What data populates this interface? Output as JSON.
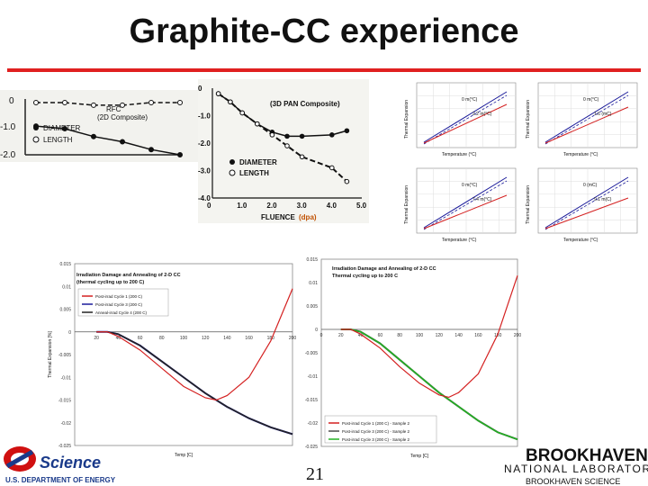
{
  "slide": {
    "title": "Graphite-CC experience",
    "page_number": "21",
    "colors": {
      "rule": "#e02020",
      "red": "#d42020",
      "blue": "#1a1a9a",
      "green": "#22b022"
    }
  },
  "chart_data": [
    {
      "type": "line",
      "title": "RFC\n(2D Composite)",
      "series": [
        {
          "name": "DIAMETER",
          "x": [
            0,
            0.8,
            1.6,
            2.4,
            3.2,
            4.0
          ],
          "y": [
            -0.9,
            -1.0,
            -1.3,
            -1.5,
            -1.8,
            -2.0
          ]
        },
        {
          "name": "LENGTH",
          "x": [
            0,
            0.8,
            1.6,
            2.4,
            3.2,
            4.0
          ],
          "y": [
            0.0,
            0.0,
            -0.1,
            -0.1,
            0.0,
            0.0
          ]
        }
      ],
      "yticks": [
        "0",
        "-1.0",
        "-2.0"
      ],
      "legend": [
        "DIAMETER",
        "LENGTH"
      ]
    },
    {
      "type": "line",
      "title": "(3D PAN Composite)",
      "xlabel": "FLUENCE",
      "xlabel_unit": "(dpa)",
      "xticks": [
        "0",
        "1.0",
        "2.0",
        "3.0",
        "4.0",
        "5.0"
      ],
      "yticks": [
        "0",
        "-1.0",
        "-2.0",
        "-3.0",
        "-4.0"
      ],
      "xlim": [
        0,
        5
      ],
      "ylim": [
        -4,
        0
      ],
      "series": [
        {
          "name": "DIAMETER",
          "x": [
            0.2,
            0.6,
            1.0,
            1.5,
            2.0,
            2.5,
            3.0,
            4.0,
            4.5
          ],
          "y": [
            -0.2,
            -0.5,
            -0.9,
            -1.3,
            -1.6,
            -1.75,
            -1.75,
            -1.7,
            -1.55
          ]
        },
        {
          "name": "LENGTH",
          "x": [
            0.2,
            0.6,
            1.0,
            1.5,
            2.0,
            2.5,
            3.0,
            4.0,
            4.5
          ],
          "y": [
            -0.2,
            -0.5,
            -0.9,
            -1.3,
            -1.7,
            -2.1,
            -2.5,
            -2.9,
            -3.4
          ]
        }
      ],
      "legend": [
        "DIAMETER",
        "LENGTH"
      ]
    },
    {
      "type": "line",
      "title": "Irradiation Damage and Annealing of 2-D CC\n(thermal cycling up to 200 C)",
      "xlabel": "Temp [C]",
      "ylabel": "Thermal Expansion [%]",
      "xticks": [
        "20",
        "40",
        "60",
        "80",
        "100",
        "120",
        "140",
        "160",
        "180",
        "200"
      ],
      "yticks": [
        "0.015",
        "0.01",
        "0.005",
        "0",
        "-0.005",
        "-0.01",
        "-0.015",
        "-0.02",
        "-0.025"
      ],
      "xlim": [
        0,
        200
      ],
      "ylim": [
        -0.025,
        0.015
      ],
      "series": [
        {
          "name": "Post-irrad Cycle 1 (200 C)",
          "x": [
            20,
            30,
            40,
            60,
            80,
            100,
            120,
            130,
            140,
            160,
            180,
            200
          ],
          "y": [
            0,
            0,
            -0.001,
            -0.004,
            -0.008,
            -0.012,
            -0.0145,
            -0.015,
            -0.014,
            -0.01,
            -0.002,
            0.0095
          ]
        },
        {
          "name": "Post-irrad Cycle 3 (200 C)",
          "x": [
            20,
            30,
            40,
            60,
            80,
            100,
            120,
            140,
            160,
            180,
            200
          ],
          "y": [
            0,
            0,
            -0.0005,
            -0.003,
            -0.0065,
            -0.01,
            -0.0135,
            -0.0165,
            -0.019,
            -0.021,
            -0.0225
          ]
        },
        {
          "name": "Anneal-irrad Cycle 4 (200 C)",
          "x": [
            20,
            30,
            40,
            60,
            80,
            100,
            120,
            140,
            160,
            180,
            200
          ],
          "y": [
            0,
            0,
            -0.0005,
            -0.003,
            -0.0065,
            -0.01,
            -0.0135,
            -0.0165,
            -0.019,
            -0.021,
            -0.0225
          ]
        }
      ]
    },
    {
      "type": "line",
      "title": "Irradiation Damage and Annealing of 2-D CC\nThermal cycling up to 200 C",
      "xlabel": "Temp [C]",
      "ylabel": "Thermal Expansion [%]",
      "xticks": [
        "0",
        "20",
        "40",
        "60",
        "80",
        "100",
        "120",
        "140",
        "160",
        "180",
        "200"
      ],
      "yticks": [
        "0.015",
        "0.01",
        "0.005",
        "0",
        "-0.005",
        "-0.01",
        "-0.015",
        "-0.02",
        "-0.025"
      ],
      "xlim": [
        0,
        200
      ],
      "ylim": [
        -0.025,
        0.015
      ],
      "series": [
        {
          "name": "Post-irrad Cycle 1 (200 C) - Sample 2",
          "x": [
            20,
            30,
            40,
            60,
            80,
            100,
            120,
            130,
            140,
            160,
            180,
            200
          ],
          "y": [
            0,
            0,
            -0.001,
            -0.004,
            -0.008,
            -0.0115,
            -0.014,
            -0.0145,
            -0.0135,
            -0.0095,
            -0.001,
            0.0115
          ]
        },
        {
          "name": "Post-irrad Cycle 3 (200 C) - Sample 2",
          "x": [
            20,
            30,
            40,
            60,
            80,
            100,
            120,
            140,
            160,
            180,
            200
          ],
          "y": [
            0,
            0,
            -0.0005,
            -0.003,
            -0.0065,
            -0.01,
            -0.0135,
            -0.0165,
            -0.0195,
            -0.022,
            -0.0235
          ]
        },
        {
          "name": "Post-irrad Cycle 3 (200 C) - Sample 2",
          "x": [
            20,
            30,
            40,
            60,
            80,
            100,
            120,
            140,
            160,
            180,
            200
          ],
          "y": [
            0,
            0,
            -0.0005,
            -0.003,
            -0.0065,
            -0.01,
            -0.0135,
            -0.0165,
            -0.0195,
            -0.022,
            -0.0235
          ]
        }
      ]
    }
  ],
  "small_plots": {
    "ylabel": "Thermal Expansion",
    "xlabel": "Temperature (°C)",
    "annotations": [
      "0 m(°C)",
      "2.2 m(°C)",
      "0 m(°C)",
      "1.6 (mC)",
      "0 m(°C)",
      "7.4 m(°C)",
      "0 (mC)",
      "9.1 m(C)"
    ]
  },
  "footer": {
    "doe_wordmark": "Science",
    "doe_subtitle": "U.S. DEPARTMENT OF ENERGY",
    "bnl_name": "BROOKHAVEN",
    "bnl_lab": "NATIONAL LABORATORY",
    "bnl_tagline": "BROOKHAVEN SCIENCE"
  }
}
